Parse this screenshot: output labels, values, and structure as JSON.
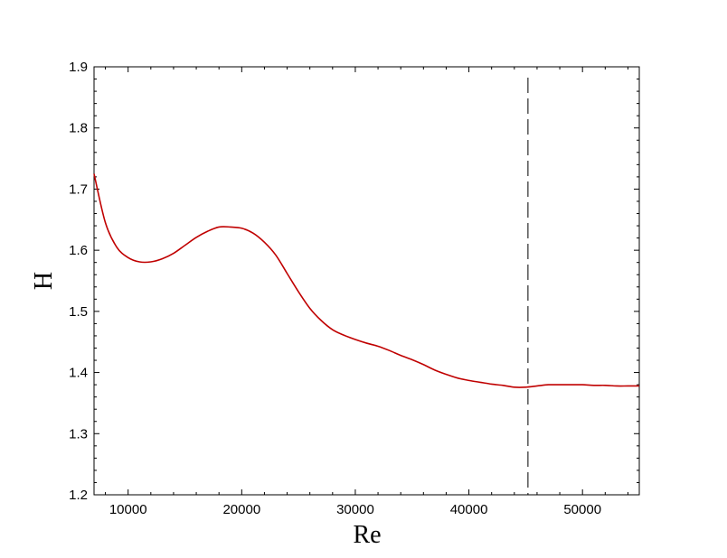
{
  "chart_data": {
    "type": "line",
    "xlabel": "Re",
    "ylabel": "H",
    "xlim": [
      7000,
      55000
    ],
    "ylim": [
      1.2,
      1.9
    ],
    "grid": false,
    "xticks": [
      10000,
      20000,
      30000,
      40000,
      50000
    ],
    "xtick_labels": [
      "10000",
      "20000",
      "30000",
      "40000",
      "50000"
    ],
    "yticks": [
      1.2,
      1.3,
      1.4,
      1.5,
      1.6,
      1.7,
      1.8,
      1.9
    ],
    "ytick_labels": [
      "1.2",
      "1.3",
      "1.4",
      "1.5",
      "1.6",
      "1.7",
      "1.8",
      "1.9"
    ],
    "series": [
      {
        "color": "#c00000",
        "x": [
          7000,
          8000,
          9000,
          10000,
          11000,
          12000,
          13000,
          14000,
          15000,
          16000,
          17000,
          18000,
          19000,
          20000,
          21000,
          22000,
          23000,
          24000,
          25000,
          26000,
          27000,
          28000,
          29000,
          30000,
          31000,
          32000,
          33000,
          34000,
          35000,
          36000,
          37000,
          38000,
          39000,
          40000,
          41000,
          42000,
          43000,
          44000,
          45000,
          46000,
          47000,
          48000,
          49000,
          50000,
          51000,
          52000,
          53000,
          54000,
          55000
        ],
        "y": [
          1.725,
          1.645,
          1.605,
          1.588,
          1.581,
          1.581,
          1.586,
          1.595,
          1.608,
          1.621,
          1.631,
          1.638,
          1.638,
          1.636,
          1.628,
          1.613,
          1.592,
          1.562,
          1.532,
          1.505,
          1.485,
          1.47,
          1.461,
          1.454,
          1.448,
          1.443,
          1.436,
          1.428,
          1.421,
          1.413,
          1.404,
          1.397,
          1.391,
          1.387,
          1.384,
          1.381,
          1.379,
          1.376,
          1.376,
          1.378,
          1.38,
          1.38,
          1.38,
          1.38,
          1.379,
          1.379,
          1.378,
          1.378,
          1.378
        ]
      }
    ],
    "reference_line": {
      "orientation": "vertical",
      "x": 45200,
      "style": "dashed",
      "color": "#000000"
    }
  }
}
